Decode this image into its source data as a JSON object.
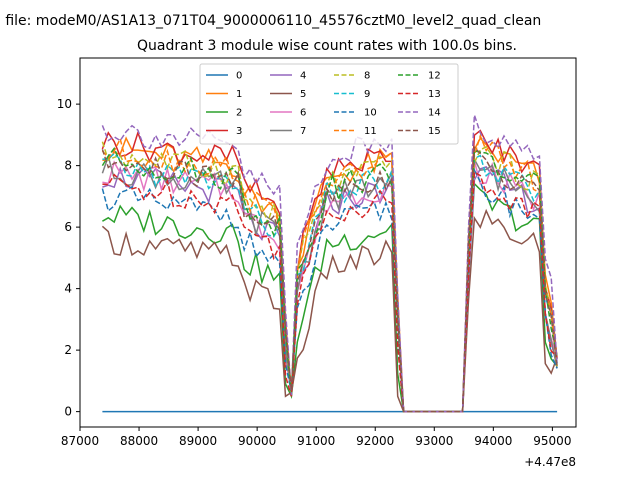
{
  "suptitle": "n file: modeM0/AS1A13_071T04_9000006110_45576cztM0_level2_quad_clean",
  "chart_data": {
    "type": "line",
    "title": "Quadrant 3 module wise count rates with 100.0s bins.",
    "xlabel": "",
    "ylabel": "",
    "x_offset_text": "+4.47e8",
    "xlim": [
      87000,
      95400
    ],
    "ylim": [
      -0.5,
      11.5
    ],
    "x_ticks": [
      87000,
      88000,
      89000,
      90000,
      91000,
      92000,
      93000,
      94000,
      95000
    ],
    "y_ticks": [
      0,
      2,
      4,
      6,
      8,
      10
    ],
    "x_tick_labels": [
      "87000",
      "88000",
      "89000",
      "90000",
      "91000",
      "92000",
      "93000",
      "94000",
      "95000"
    ],
    "y_tick_labels": [
      "0",
      "2",
      "4",
      "6",
      "8",
      "10"
    ],
    "legend": {
      "position": "top-center",
      "columns": 4
    },
    "time_start": 87380,
    "bin_seconds": 100,
    "series": [
      {
        "name": "0",
        "color": "#1f77b4",
        "style": "solid",
        "offset": 0,
        "profile": "zero"
      },
      {
        "name": "1",
        "color": "#ff7f0e",
        "style": "solid",
        "offset": 0.6,
        "profile": "high"
      },
      {
        "name": "2",
        "color": "#2ca02c",
        "style": "solid",
        "offset": -1.6,
        "profile": "low"
      },
      {
        "name": "3",
        "color": "#d62728",
        "style": "solid",
        "offset": 0.8,
        "profile": "high"
      },
      {
        "name": "4",
        "color": "#9467bd",
        "style": "solid",
        "offset": -0.3,
        "profile": "high"
      },
      {
        "name": "5",
        "color": "#8c564b",
        "style": "solid",
        "offset": -2.4,
        "profile": "low"
      },
      {
        "name": "6",
        "color": "#e377c2",
        "style": "solid",
        "offset": -0.2,
        "profile": "high"
      },
      {
        "name": "7",
        "color": "#7f7f7f",
        "style": "solid",
        "offset": -0.1,
        "profile": "high"
      },
      {
        "name": "8",
        "color": "#bcbd22",
        "style": "dashed",
        "offset": 0.4,
        "profile": "high"
      },
      {
        "name": "9",
        "color": "#17becf",
        "style": "dashed",
        "offset": 0.0,
        "profile": "high"
      },
      {
        "name": "10",
        "color": "#1f77b4",
        "style": "dashed",
        "offset": -1.0,
        "profile": "low"
      },
      {
        "name": "11",
        "color": "#ff7f0e",
        "style": "dashed",
        "offset": 0.5,
        "profile": "high"
      },
      {
        "name": "12",
        "color": "#2ca02c",
        "style": "dashed",
        "offset": 0.2,
        "profile": "high"
      },
      {
        "name": "13",
        "color": "#d62728",
        "style": "dashed",
        "offset": -0.6,
        "profile": "high"
      },
      {
        "name": "14",
        "color": "#9467bd",
        "style": "dashed",
        "offset": 1.2,
        "profile": "high"
      },
      {
        "name": "15",
        "color": "#8c564b",
        "style": "dashed",
        "offset": 0.1,
        "profile": "high"
      }
    ]
  }
}
